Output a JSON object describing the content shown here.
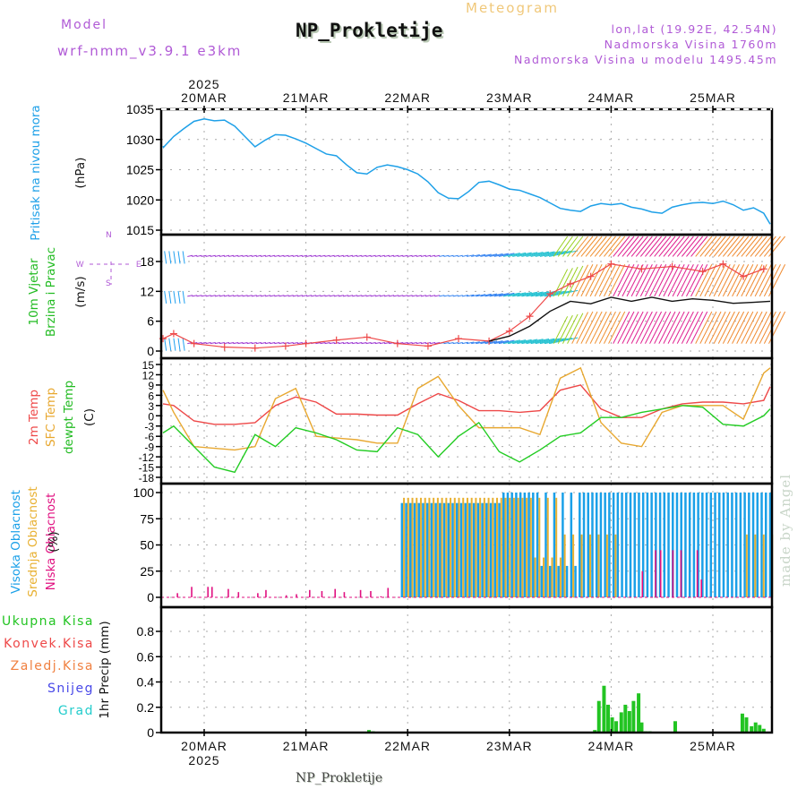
{
  "header": {
    "model_label": "Model",
    "model_name": "wrf-nmm_v3.9.1 e3km",
    "station_title": "NP_Prokletije",
    "chart_kind": "Meteogram",
    "coords": "lon,lat (19.92E, 42.54N)",
    "elevation": "Nadmorska Visina 1760m",
    "model_elevation": "Nadmorska Visina u modelu 1495.45m"
  },
  "footer": {
    "station": "NP_Prokletije",
    "credit": "made by Angel"
  },
  "colors": {
    "pressure": "#1ea0e8",
    "temp2m": "#ee4848",
    "sfc_temp": "#e8a830",
    "dewpt": "#22cc22",
    "cloud_high": "#1aa0e8",
    "cloud_mid": "#e8b030",
    "cloud_low": "#e01080",
    "precip_total": "#22c422",
    "precip_conv": "#ee4848",
    "precip_frozen": "#f08040",
    "snow": "#4848e8",
    "hail": "#22cccc",
    "compass": "#b05ad6"
  },
  "time_axis": {
    "top_year": "2025",
    "bottom_year": "2025",
    "ticks": [
      "20MAR",
      "21MAR",
      "22MAR",
      "23MAR",
      "24MAR",
      "25MAR"
    ]
  },
  "compass": {
    "n": "N",
    "s": "S",
    "w": "W",
    "e": "E"
  },
  "chart_data": [
    {
      "type": "line",
      "title": "Pritisak na nivou mora",
      "ylabel": "(hPa)",
      "ylim": [
        1015,
        1035
      ],
      "yticks": [
        "1035",
        "1030",
        "1025",
        "1020",
        "1015"
      ],
      "xlim_days": [
        -0.5,
        5.6
      ],
      "series": [
        {
          "name": "Pritisak na nivou mora",
          "color_key": "pressure",
          "x": [
            -0.5,
            -0.4,
            -0.3,
            -0.2,
            -0.1,
            0.0,
            0.1,
            0.2,
            0.3,
            0.4,
            0.5,
            0.6,
            0.7,
            0.8,
            0.9,
            1.0,
            1.1,
            1.2,
            1.3,
            1.4,
            1.5,
            1.6,
            1.7,
            1.8,
            1.9,
            2.0,
            2.1,
            2.2,
            2.3,
            2.4,
            2.5,
            2.6,
            2.7,
            2.8,
            2.9,
            3.0,
            3.1,
            3.2,
            3.3,
            3.4,
            3.5,
            3.6,
            3.7,
            3.8,
            3.9,
            4.0,
            4.1,
            4.2,
            4.3,
            4.4,
            4.5,
            4.6,
            4.7,
            4.8,
            4.9,
            5.0,
            5.1,
            5.2,
            5.3,
            5.4,
            5.5,
            5.6
          ],
          "y": [
            1028.9,
            1028.7,
            1030.5,
            1031.8,
            1033.0,
            1033.4,
            1033.1,
            1033.2,
            1032.2,
            1030.5,
            1028.8,
            1029.9,
            1030.8,
            1030.7,
            1030.1,
            1029.4,
            1028.5,
            1027.6,
            1027.3,
            1025.8,
            1024.5,
            1024.3,
            1025.4,
            1025.8,
            1025.5,
            1025.0,
            1024.3,
            1023.0,
            1021.2,
            1020.3,
            1020.2,
            1021.4,
            1022.9,
            1023.1,
            1022.5,
            1021.8,
            1021.6,
            1021.0,
            1020.4,
            1019.5,
            1018.6,
            1018.3,
            1018.1,
            1019.0,
            1019.4,
            1019.2,
            1019.4,
            1018.8,
            1018.5,
            1018.0,
            1017.8,
            1018.8,
            1019.2,
            1019.5,
            1019.6,
            1019.4,
            1019.8,
            1019.2,
            1018.3,
            1018.7,
            1017.8,
            1016.0
          ]
        }
      ]
    },
    {
      "type": "line",
      "title": "10m Vjetar Brzina i Pravac",
      "ylabel": "(m/s)",
      "ylim": [
        -1,
        21
      ],
      "yticks": [
        "18",
        "12",
        "6",
        "0"
      ],
      "wind_barb_levels": [
        "~1.5 m/s",
        "~11 m/s",
        "~19 m/s"
      ],
      "series": [
        {
          "name": "10m wind speed",
          "color_key": "temp2m",
          "marker": "+",
          "x": [
            -0.5,
            -0.3,
            -0.1,
            0.2,
            0.5,
            0.8,
            1.0,
            1.3,
            1.6,
            1.9,
            2.2,
            2.5,
            2.8,
            3.0,
            3.2,
            3.4,
            3.6,
            3.8,
            4.0,
            4.3,
            4.6,
            4.9,
            5.1,
            5.3,
            5.5
          ],
          "y": [
            2.5,
            3.5,
            1.5,
            0.8,
            0.6,
            1.0,
            1.5,
            2.2,
            2.8,
            1.5,
            1.0,
            2.5,
            2.0,
            4.0,
            7.0,
            11.5,
            13.5,
            15.0,
            17.5,
            16.5,
            17.0,
            16.0,
            17.5,
            15.0,
            16.5
          ]
        },
        {
          "name": "gust / black line",
          "color": "#111111",
          "x": [
            2.8,
            3.0,
            3.2,
            3.4,
            3.6,
            3.8,
            4.0,
            4.2,
            4.4,
            4.6,
            4.8,
            5.0,
            5.2,
            5.4,
            5.6
          ],
          "y": [
            2.0,
            3.0,
            5.0,
            8.0,
            10.0,
            9.5,
            10.8,
            10.0,
            10.8,
            10.0,
            10.5,
            10.2,
            9.6,
            9.8,
            10.0
          ]
        }
      ]
    },
    {
      "type": "line",
      "title": "2m Temp / SFC Temp / dewpt Temp",
      "ylabel": "(C)",
      "ylim": [
        -18,
        15
      ],
      "yticks": [
        "15",
        "12",
        "9",
        "6",
        "3",
        "0",
        "-3",
        "-6",
        "-9",
        "-12",
        "-15",
        "-18"
      ],
      "series": [
        {
          "name": "2m Temp",
          "color_key": "temp2m",
          "x": [
            -0.5,
            -0.3,
            -0.1,
            0.1,
            0.3,
            0.5,
            0.7,
            0.9,
            1.1,
            1.3,
            1.5,
            1.7,
            1.9,
            2.1,
            2.3,
            2.5,
            2.7,
            2.9,
            3.1,
            3.3,
            3.5,
            3.7,
            3.9,
            4.1,
            4.3,
            4.5,
            4.7,
            4.9,
            5.1,
            5.3,
            5.5,
            5.6
          ],
          "y": [
            3.5,
            3.0,
            -1.5,
            -2.5,
            -2.5,
            -2.0,
            3.0,
            5.5,
            4.0,
            0.5,
            0.5,
            0.2,
            0.2,
            3.5,
            6.5,
            4.5,
            1.5,
            1.5,
            1.0,
            1.5,
            7.5,
            9.0,
            2.0,
            -0.5,
            -0.5,
            2.0,
            3.5,
            4.0,
            4.0,
            3.5,
            4.5,
            8.5
          ]
        },
        {
          "name": "SFC Temp",
          "color_key": "sfc_temp",
          "x": [
            -0.5,
            -0.3,
            -0.1,
            0.1,
            0.3,
            0.5,
            0.7,
            0.9,
            1.1,
            1.3,
            1.5,
            1.7,
            1.9,
            2.1,
            2.3,
            2.5,
            2.7,
            2.9,
            3.1,
            3.3,
            3.5,
            3.7,
            3.9,
            4.1,
            4.3,
            4.5,
            4.7,
            4.9,
            5.1,
            5.3,
            5.5,
            5.6
          ],
          "y": [
            7.5,
            1.0,
            -9.0,
            -9.5,
            -10.0,
            -9.0,
            5.0,
            8.0,
            -6.0,
            -6.5,
            -7.0,
            -8.0,
            -8.0,
            8.0,
            11.5,
            3.0,
            -3.5,
            -3.5,
            -3.5,
            -5.5,
            11.0,
            14.0,
            -2.0,
            -8.0,
            -9.0,
            1.0,
            3.0,
            3.0,
            3.0,
            -1.0,
            12.5,
            14.0
          ]
        },
        {
          "name": "dewpt Temp",
          "color_key": "dewpt",
          "x": [
            -0.5,
            -0.3,
            -0.1,
            0.1,
            0.3,
            0.5,
            0.7,
            0.9,
            1.1,
            1.3,
            1.5,
            1.7,
            1.9,
            2.1,
            2.3,
            2.5,
            2.7,
            2.9,
            3.1,
            3.3,
            3.5,
            3.7,
            3.9,
            4.1,
            4.3,
            4.5,
            4.7,
            4.9,
            5.1,
            5.3,
            5.5,
            5.6
          ],
          "y": [
            -5.0,
            -3.0,
            -9.0,
            -15.0,
            -16.5,
            -5.5,
            -9.0,
            -3.5,
            -5.0,
            -7.0,
            -10.0,
            -10.5,
            -3.5,
            -5.5,
            -12.0,
            -6.0,
            -2.0,
            -10.5,
            -13.5,
            -10.0,
            -6.0,
            -5.0,
            -0.5,
            -0.5,
            1.0,
            2.0,
            3.0,
            2.5,
            -2.5,
            -3.0,
            0.0,
            2.0
          ]
        }
      ]
    },
    {
      "type": "bar",
      "title": "Visoka / Srednja / Niska Oblacnost",
      "ylabel": "(%)",
      "ylim": [
        0,
        100
      ],
      "yticks": [
        "100",
        "75",
        "50",
        "25",
        "0"
      ],
      "series": [
        {
          "name": "Visoka Oblacnost",
          "color_key": "cloud_high",
          "segments": [
            {
              "from": -0.5,
              "to": 1.9,
              "value": 0
            },
            {
              "from": 1.9,
              "to": 2.9,
              "value": 90
            },
            {
              "from": 2.9,
              "to": 5.6,
              "value": 100
            }
          ]
        },
        {
          "name": "Srednja Oblacnost",
          "color_key": "cloud_mid",
          "segments": [
            {
              "from": -0.5,
              "to": 1.9,
              "value": 0
            },
            {
              "from": 1.9,
              "to": 3.5,
              "value": 95
            },
            {
              "from": 3.5,
              "to": 5.6,
              "value": 10
            }
          ]
        },
        {
          "name": "Niska Oblacnost",
          "color_key": "cloud_low",
          "spikes_x": [
            -0.27,
            -0.13,
            0.03,
            0.07,
            0.23,
            0.33,
            0.52,
            0.6,
            0.8,
            0.9,
            1.03,
            1.15,
            1.28,
            1.37,
            1.53,
            1.63,
            1.73,
            1.8,
            4.3,
            4.43,
            4.48,
            4.6,
            4.68,
            4.84,
            4.88
          ],
          "spikes_y": [
            4,
            10,
            10,
            10,
            8,
            5,
            4,
            7,
            2,
            3,
            7,
            6,
            8,
            5,
            7,
            6,
            1,
            9,
            25,
            45,
            45,
            45,
            45,
            45,
            17
          ]
        }
      ]
    },
    {
      "type": "bar",
      "title": "1hr Precip",
      "ylabel": "1hr Precip (mm)",
      "ylim": [
        0,
        1.0
      ],
      "yticks": [
        "0.8",
        "0.6",
        "0.4",
        "0.2",
        "0"
      ],
      "legend": [
        "Ukupna Kisa",
        "Konvek.Kisa",
        "Zaledj.Kisa",
        "Snijeg",
        "Grad"
      ],
      "series": [
        {
          "name": "Ukupna Kisa",
          "color_key": "precip_total",
          "x": [
            1.62,
            1.66,
            3.84,
            3.88,
            3.93,
            3.97,
            4.01,
            4.05,
            4.1,
            4.14,
            4.18,
            4.22,
            4.27,
            4.3,
            4.34,
            4.38,
            4.63,
            5.29,
            5.33,
            5.38,
            5.42,
            5.46,
            5.5
          ],
          "y": [
            0.02,
            0.01,
            0.02,
            0.25,
            0.37,
            0.22,
            0.12,
            0.09,
            0.16,
            0.22,
            0.17,
            0.25,
            0.31,
            0.08,
            0.01,
            0.01,
            0.09,
            0.15,
            0.12,
            0.05,
            0.08,
            0.06,
            0.03
          ]
        }
      ]
    }
  ],
  "left_labels": {
    "pressure": [
      "Pritisak na nivou mora"
    ],
    "pressure_unit": "(hPa)",
    "wind": [
      "10m Vjetar",
      "Brzina i Pravac"
    ],
    "wind_unit": "(m/s)",
    "temp": [
      "2m Temp",
      "SFC Temp",
      "dewpt Temp"
    ],
    "temp_unit": "(C)",
    "cloud": [
      "Visoka Oblacnost",
      "Srednja Oblacnost",
      "Niska Oblacnost"
    ],
    "cloud_unit": "(%)",
    "precip_unit": "1hr Precip (mm)",
    "precip_legend": [
      "Ukupna Kisa",
      "Konvek.Kisa",
      "Zaledj.Kisa",
      "Snijeg",
      "Grad"
    ]
  }
}
